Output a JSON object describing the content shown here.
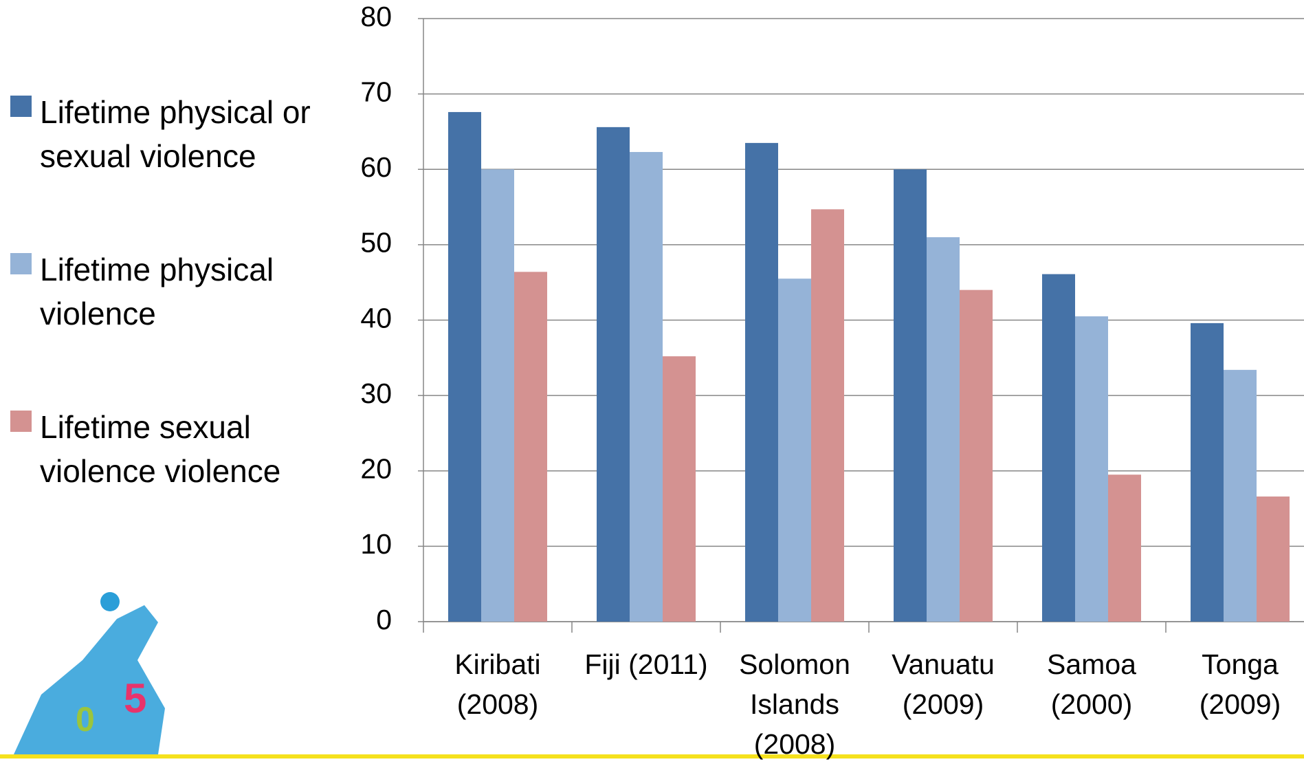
{
  "chart_data": {
    "type": "bar",
    "categories": [
      "Kiribati (2008)",
      "Fiji (2011)",
      "Solomon Islands (2008)",
      "Vanuatu (2009)",
      "Samoa (2000)",
      "Tonga (2009)"
    ],
    "series": [
      {
        "name": "Lifetime physical or sexual violence",
        "color": "#4572a7",
        "values": [
          67.6,
          65.6,
          63.5,
          60,
          46.1,
          39.6
        ]
      },
      {
        "name": "Lifetime physical violence",
        "color": "#95b3d7",
        "values": [
          60,
          62.3,
          45.5,
          51,
          40.5,
          33.4
        ]
      },
      {
        "name": "Lifetime sexual violence violence",
        "color": "#d49291",
        "values": [
          46.4,
          35.2,
          54.7,
          44,
          19.5,
          16.6
        ]
      }
    ],
    "ylim": [
      0,
      80
    ],
    "yticks": [
      0,
      10,
      20,
      30,
      40,
      50,
      60,
      70,
      80
    ],
    "grid": true,
    "legend": "left"
  }
}
